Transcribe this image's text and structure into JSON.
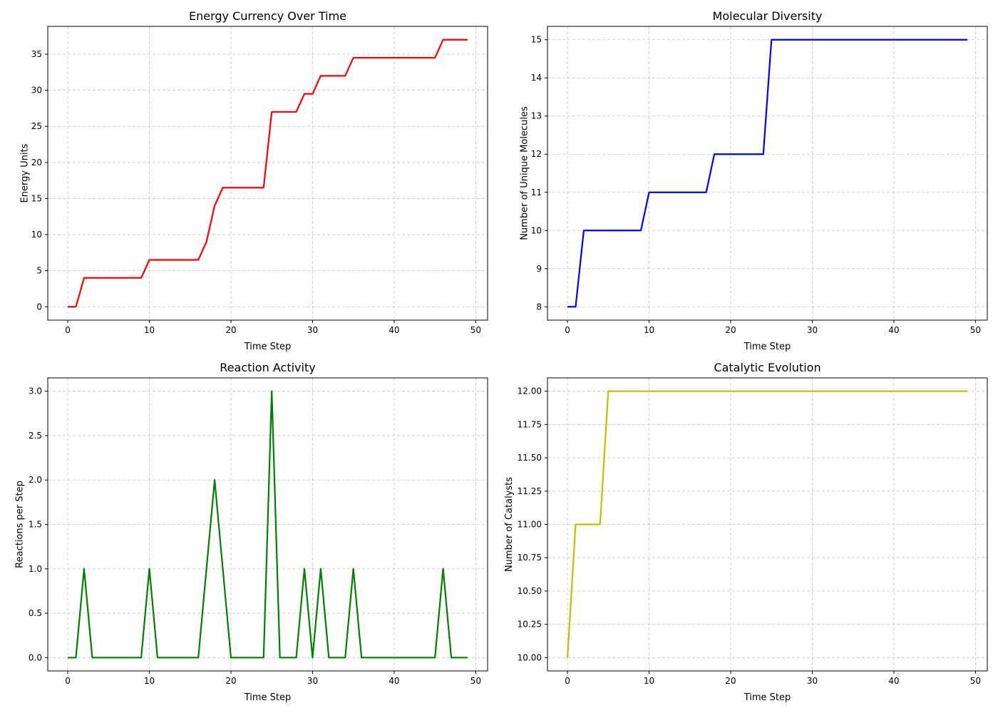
{
  "chart_data": [
    {
      "type": "line",
      "title": "Energy Currency Over Time",
      "xlabel": "Time Step",
      "ylabel": "Energy Units",
      "xlim": [
        -2.45,
        51.45
      ],
      "ylim": [
        -1.85,
        38.85
      ],
      "xticks": [
        0,
        10,
        20,
        30,
        40,
        50
      ],
      "yticks": [
        0,
        5,
        10,
        15,
        20,
        25,
        30,
        35
      ],
      "ytick_decimals": 0,
      "grid": true,
      "color": "#ff0000",
      "series": [
        {
          "x": [
            0,
            1,
            2,
            3,
            4,
            5,
            6,
            7,
            8,
            9,
            10,
            11,
            12,
            13,
            14,
            15,
            16,
            17,
            18,
            19,
            20,
            21,
            22,
            23,
            24,
            25,
            26,
            27,
            28,
            29,
            30,
            31,
            32,
            33,
            34,
            35,
            36,
            37,
            38,
            39,
            40,
            41,
            42,
            43,
            44,
            45,
            46,
            47,
            48,
            49
          ],
          "values": [
            0,
            0,
            4,
            4,
            4,
            4,
            4,
            4,
            4,
            4,
            6.5,
            6.5,
            6.5,
            6.5,
            6.5,
            6.5,
            6.5,
            9,
            14,
            16.5,
            16.5,
            16.5,
            16.5,
            16.5,
            16.5,
            27,
            27,
            27,
            27,
            29.5,
            29.5,
            32,
            32,
            32,
            32,
            34.5,
            34.5,
            34.5,
            34.5,
            34.5,
            34.5,
            34.5,
            34.5,
            34.5,
            34.5,
            34.5,
            37,
            37,
            37,
            37
          ]
        }
      ]
    },
    {
      "type": "line",
      "title": "Molecular Diversity",
      "xlabel": "Time Step",
      "ylabel": "Number of Unique Molecules",
      "xlim": [
        -2.45,
        51.45
      ],
      "ylim": [
        7.65,
        15.35
      ],
      "xticks": [
        0,
        10,
        20,
        30,
        40,
        50
      ],
      "yticks": [
        8,
        9,
        10,
        11,
        12,
        13,
        14,
        15
      ],
      "ytick_decimals": 0,
      "grid": true,
      "color": "#0000ff",
      "series": [
        {
          "x": [
            0,
            1,
            2,
            3,
            4,
            5,
            6,
            7,
            8,
            9,
            10,
            11,
            12,
            13,
            14,
            15,
            16,
            17,
            18,
            19,
            20,
            21,
            22,
            23,
            24,
            25,
            26,
            27,
            28,
            29,
            30,
            31,
            32,
            33,
            34,
            35,
            36,
            37,
            38,
            39,
            40,
            41,
            42,
            43,
            44,
            45,
            46,
            47,
            48,
            49
          ],
          "values": [
            8,
            8,
            10,
            10,
            10,
            10,
            10,
            10,
            10,
            10,
            11,
            11,
            11,
            11,
            11,
            11,
            11,
            11,
            12,
            12,
            12,
            12,
            12,
            12,
            12,
            15,
            15,
            15,
            15,
            15,
            15,
            15,
            15,
            15,
            15,
            15,
            15,
            15,
            15,
            15,
            15,
            15,
            15,
            15,
            15,
            15,
            15,
            15,
            15,
            15
          ]
        }
      ]
    },
    {
      "type": "line",
      "title": "Reaction Activity",
      "xlabel": "Time Step",
      "ylabel": "Reactions per Step",
      "xlim": [
        -2.45,
        51.45
      ],
      "ylim": [
        -0.15,
        3.15
      ],
      "xticks": [
        0,
        10,
        20,
        30,
        40,
        50
      ],
      "yticks": [
        0,
        0.5,
        1,
        1.5,
        2,
        2.5,
        3
      ],
      "ytick_decimals": 1,
      "grid": true,
      "color": "#008000",
      "series": [
        {
          "x": [
            0,
            1,
            2,
            3,
            4,
            5,
            6,
            7,
            8,
            9,
            10,
            11,
            12,
            13,
            14,
            15,
            16,
            17,
            18,
            19,
            20,
            21,
            22,
            23,
            24,
            25,
            26,
            27,
            28,
            29,
            30,
            31,
            32,
            33,
            34,
            35,
            36,
            37,
            38,
            39,
            40,
            41,
            42,
            43,
            44,
            45,
            46,
            47,
            48,
            49
          ],
          "values": [
            0,
            0,
            1,
            0,
            0,
            0,
            0,
            0,
            0,
            0,
            1,
            0,
            0,
            0,
            0,
            0,
            0,
            1,
            2,
            1,
            0,
            0,
            0,
            0,
            0,
            3,
            0,
            0,
            0,
            1,
            0,
            1,
            0,
            0,
            0,
            1,
            0,
            0,
            0,
            0,
            0,
            0,
            0,
            0,
            0,
            0,
            1,
            0,
            0,
            0
          ]
        }
      ]
    },
    {
      "type": "line",
      "title": "Catalytic Evolution",
      "xlabel": "Time Step",
      "ylabel": "Number of Catalysts",
      "xlim": [
        -2.45,
        51.45
      ],
      "ylim": [
        9.9,
        12.1
      ],
      "xticks": [
        0,
        10,
        20,
        30,
        40,
        50
      ],
      "yticks": [
        10,
        10.25,
        10.5,
        10.75,
        11,
        11.25,
        11.5,
        11.75,
        12
      ],
      "ytick_decimals": 2,
      "grid": true,
      "color": "#bfbf00",
      "series": [
        {
          "x": [
            0,
            1,
            2,
            3,
            4,
            5,
            6,
            7,
            8,
            9,
            10,
            11,
            12,
            13,
            14,
            15,
            16,
            17,
            18,
            19,
            20,
            21,
            22,
            23,
            24,
            25,
            26,
            27,
            28,
            29,
            30,
            31,
            32,
            33,
            34,
            35,
            36,
            37,
            38,
            39,
            40,
            41,
            42,
            43,
            44,
            45,
            46,
            47,
            48,
            49
          ],
          "values": [
            10,
            11,
            11,
            11,
            11,
            12,
            12,
            12,
            12,
            12,
            12,
            12,
            12,
            12,
            12,
            12,
            12,
            12,
            12,
            12,
            12,
            12,
            12,
            12,
            12,
            12,
            12,
            12,
            12,
            12,
            12,
            12,
            12,
            12,
            12,
            12,
            12,
            12,
            12,
            12,
            12,
            12,
            12,
            12,
            12,
            12,
            12,
            12,
            12,
            12
          ]
        }
      ]
    }
  ]
}
